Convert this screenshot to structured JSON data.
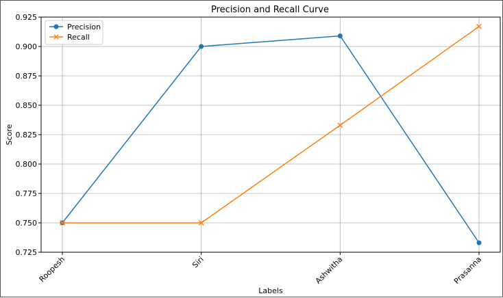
{
  "chart_data": {
    "type": "line",
    "title": "Precision and Recall Curve",
    "xlabel": "Labels",
    "ylabel": "Score",
    "categories": [
      "Roopesh",
      "Siri",
      "Ashwitha",
      "Prasanna"
    ],
    "ylim": [
      0.725,
      0.925
    ],
    "yticks": [
      "0.725",
      "0.750",
      "0.775",
      "0.800",
      "0.825",
      "0.850",
      "0.875",
      "0.900",
      "0.925"
    ],
    "grid": true,
    "legend_position": "top-left",
    "series": [
      {
        "name": "Precision",
        "values": [
          0.75,
          0.9,
          0.909,
          0.733
        ],
        "marker": "circle",
        "color": "#1f77b4"
      },
      {
        "name": "Recall",
        "values": [
          0.75,
          0.75,
          0.833,
          0.917
        ],
        "marker": "x",
        "color": "#ff7f0e"
      }
    ]
  }
}
